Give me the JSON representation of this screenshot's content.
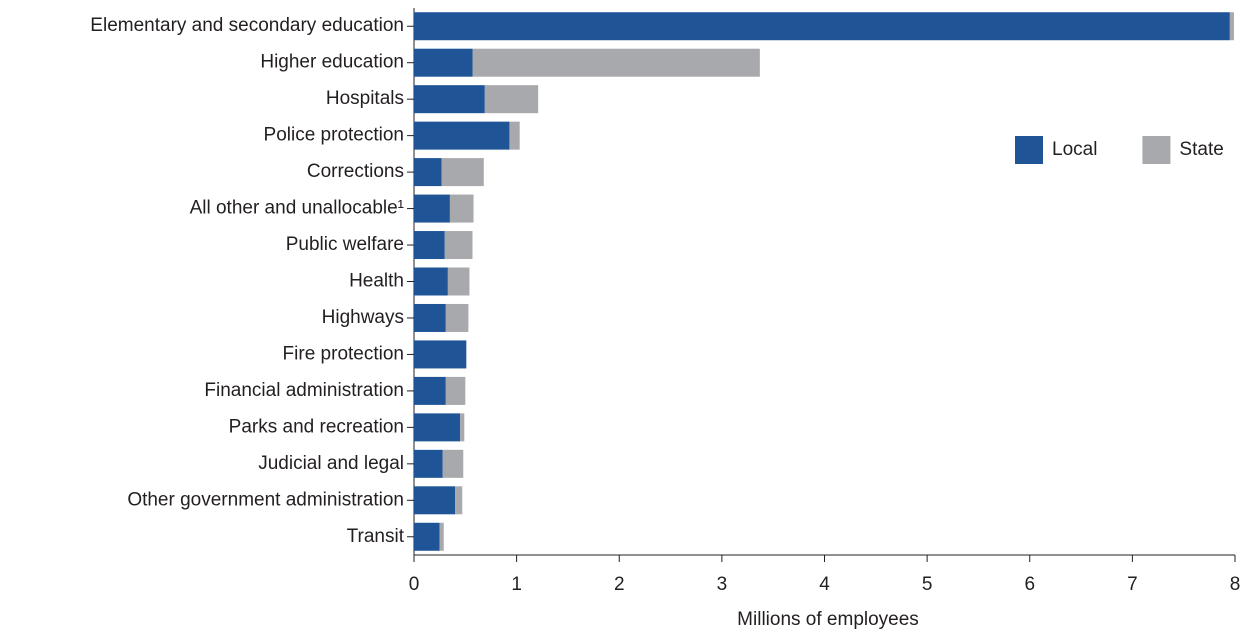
{
  "chart_data": {
    "type": "stacked_bar_horizontal",
    "xlabel": "Millions of employees",
    "categories": [
      "Elementary and secondary education",
      "Higher education",
      "Hospitals",
      "Police protection",
      "Corrections",
      "All other and unallocable¹",
      "Public welfare",
      "Health",
      "Highways",
      "Fire protection",
      "Financial administration",
      "Parks and recreation",
      "Judicial and legal",
      "Other government administration",
      "Transit"
    ],
    "series": [
      {
        "name": "Local",
        "color": "#1f5597",
        "values": [
          7.95,
          0.57,
          0.69,
          0.93,
          0.27,
          0.35,
          0.3,
          0.33,
          0.31,
          0.51,
          0.31,
          0.45,
          0.28,
          0.4,
          0.25
        ]
      },
      {
        "name": "State",
        "color": "#a7a9ac",
        "values": [
          0.04,
          2.8,
          0.52,
          0.1,
          0.41,
          0.23,
          0.27,
          0.21,
          0.22,
          0,
          0.19,
          0.04,
          0.2,
          0.07,
          0.04
        ]
      }
    ],
    "xlim": [
      0,
      8
    ],
    "xticks": [
      0,
      1,
      2,
      3,
      4,
      5,
      6,
      7,
      8
    ],
    "grid": false,
    "legend": "right"
  }
}
